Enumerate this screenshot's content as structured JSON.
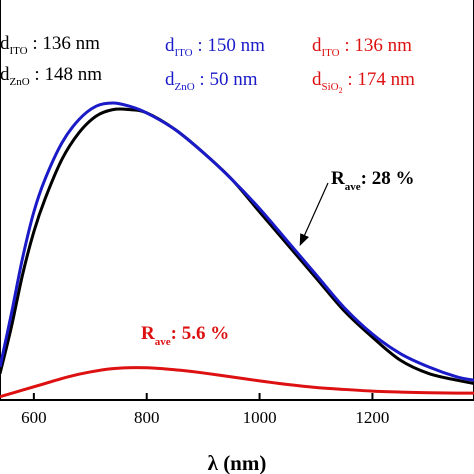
{
  "chart_data": {
    "type": "line",
    "title": "",
    "xlabel": "λ (nm)",
    "ylabel": "",
    "xlim": [
      540,
      1380
    ],
    "ylim": [
      0,
      1
    ],
    "x_ticks": [
      600,
      800,
      1000,
      1200
    ],
    "x_tick_labels": [
      "600",
      "800",
      "1000",
      "1200"
    ],
    "grid": false,
    "series": [
      {
        "color": "#1a1ac8",
        "x": [
          540,
          560,
          580,
          600,
          620,
          650,
          680,
          710,
          740,
          770,
          800,
          850,
          900,
          950,
          1000,
          1050,
          1100,
          1150,
          1200,
          1250,
          1300,
          1350,
          1380
        ],
        "y": [
          0.1,
          0.26,
          0.43,
          0.57,
          0.67,
          0.78,
          0.85,
          0.89,
          0.9,
          0.89,
          0.87,
          0.82,
          0.75,
          0.67,
          0.58,
          0.48,
          0.38,
          0.28,
          0.2,
          0.14,
          0.1,
          0.07,
          0.06
        ]
      },
      {
        "color": "#000000",
        "x": [
          540,
          560,
          580,
          600,
          620,
          650,
          680,
          710,
          740,
          770,
          800,
          850,
          900,
          950,
          1000,
          1050,
          1100,
          1150,
          1200,
          1250,
          1300,
          1350,
          1380
        ],
        "y": [
          0.08,
          0.22,
          0.38,
          0.51,
          0.61,
          0.73,
          0.81,
          0.86,
          0.88,
          0.88,
          0.87,
          0.82,
          0.75,
          0.67,
          0.57,
          0.47,
          0.37,
          0.27,
          0.19,
          0.12,
          0.08,
          0.06,
          0.05
        ]
      },
      {
        "color": "#dd1111",
        "x": [
          540,
          580,
          620,
          660,
          700,
          740,
          780,
          820,
          860,
          900,
          950,
          1000,
          1050,
          1100,
          1150,
          1200,
          1250,
          1300,
          1350,
          1380
        ],
        "y": [
          0.01,
          0.03,
          0.05,
          0.07,
          0.085,
          0.095,
          0.098,
          0.096,
          0.09,
          0.082,
          0.07,
          0.058,
          0.047,
          0.038,
          0.032,
          0.027,
          0.024,
          0.022,
          0.021,
          0.021
        ]
      }
    ],
    "legend": [
      {
        "color": "#000000",
        "lines": [
          {
            "base": "d",
            "sub": "ITO",
            "rest": " : 136 nm"
          },
          {
            "base": "d",
            "sub": "ZnO",
            "rest": " : 148 nm"
          }
        ]
      },
      {
        "color": "#1a1ac8",
        "lines": [
          {
            "base": "d",
            "sub": "ITO",
            "rest": " : 150 nm"
          },
          {
            "base": "d",
            "sub": "ZnO",
            "rest": " : 50 nm"
          }
        ]
      },
      {
        "color": "#dd1111",
        "lines": [
          {
            "base": "d",
            "sub": "ITO",
            "rest": " : 136 nm"
          },
          {
            "base": "d",
            "sub": "SiO",
            "sub2": "2",
            "rest": " : 174 nm"
          }
        ]
      }
    ],
    "annotations": [
      {
        "base": "R",
        "sub": "ave",
        "rest": ": 28 %",
        "color": "#000000",
        "arrow_to": {
          "x": 1072,
          "y": 0.47
        }
      },
      {
        "base": "R",
        "sub": "ave",
        "rest": ": 5.6 %",
        "color": "#dd1111"
      }
    ]
  }
}
